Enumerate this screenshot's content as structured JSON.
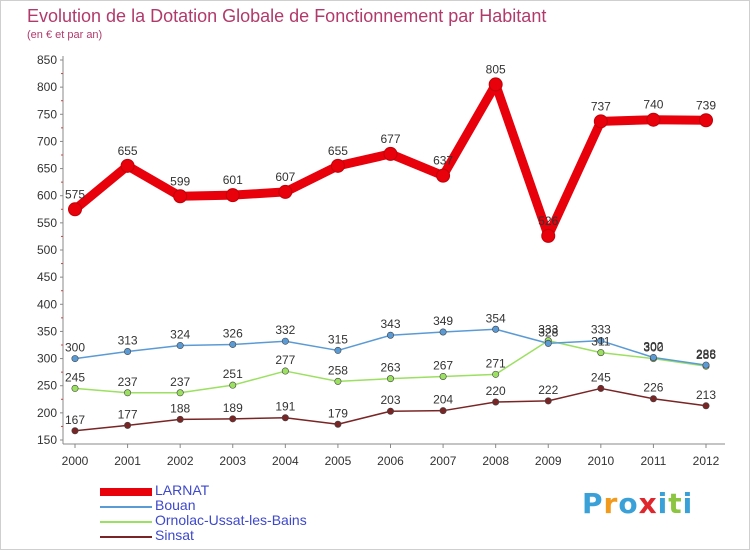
{
  "chart_data": {
    "type": "line",
    "title": "Evolution de la Dotation Globale de Fonctionnement par Habitant",
    "subtitle": "(en € et par an)",
    "xlabel": "",
    "ylabel": "",
    "categories": [
      "2000",
      "2001",
      "2002",
      "2003",
      "2004",
      "2005",
      "2006",
      "2007",
      "2008",
      "2009",
      "2010",
      "2011",
      "2012"
    ],
    "ylim": [
      150,
      850
    ],
    "yticks": [
      "150",
      "200",
      "250",
      "300",
      "350",
      "400",
      "450",
      "500",
      "550",
      "600",
      "650",
      "700",
      "750",
      "800",
      "850"
    ],
    "grid": false,
    "legend_position": "bottom-left",
    "series": [
      {
        "name": "LARNAT",
        "color": "#e8000b",
        "values": [
          575,
          655,
          599,
          601,
          607,
          655,
          677,
          637,
          805,
          526,
          737,
          740,
          739
        ]
      },
      {
        "name": "Bouan",
        "color": "#5b9bd5",
        "values": [
          300,
          313,
          324,
          326,
          332,
          315,
          343,
          349,
          354,
          328,
          333,
          302,
          288
        ]
      },
      {
        "name": "Ornolac-Ussat-les-Bains",
        "color": "#9be060",
        "values": [
          245,
          237,
          237,
          251,
          277,
          258,
          263,
          267,
          271,
          333,
          311,
          300,
          286
        ]
      },
      {
        "name": "Sinsat",
        "color": "#7a2525",
        "values": [
          167,
          177,
          188,
          189,
          191,
          179,
          203,
          204,
          220,
          222,
          245,
          226,
          213
        ]
      }
    ]
  },
  "branding": {
    "logo_letters": [
      "P",
      "r",
      "o",
      "x",
      "i",
      "t",
      "i"
    ],
    "logo_colors": [
      "#3aa0d8",
      "#f29a1c",
      "#3aa0d8",
      "#e0262d",
      "#3aa0d8",
      "#8cc540",
      "#3aa0d8"
    ]
  }
}
